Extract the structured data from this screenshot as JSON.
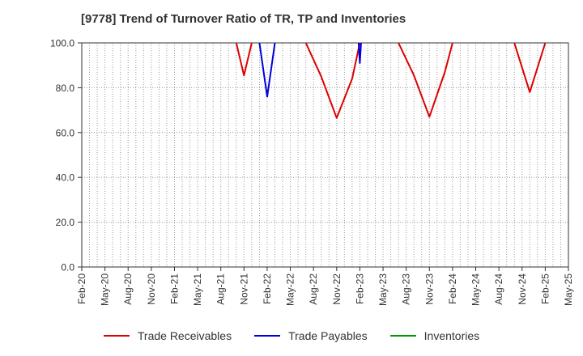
{
  "title": "[9778]  Trend of Turnover Ratio of TR, TP and Inventories",
  "chart_data": {
    "type": "line",
    "title": "[9778]  Trend of Turnover Ratio of TR, TP and Inventories",
    "xlabel": "",
    "ylabel": "",
    "ylim": [
      0,
      100
    ],
    "yticks": [
      "0.0",
      "20.0",
      "40.0",
      "60.0",
      "80.0",
      "100.0"
    ],
    "xticks": [
      "Feb-20",
      "May-20",
      "Aug-20",
      "Nov-20",
      "Feb-21",
      "May-21",
      "Aug-21",
      "Nov-21",
      "Feb-22",
      "May-22",
      "Aug-22",
      "Nov-22",
      "Feb-23",
      "May-23",
      "Aug-23",
      "Nov-23",
      "Feb-24",
      "May-24",
      "Aug-24",
      "Nov-24",
      "Feb-25",
      "May-25"
    ],
    "grid": true,
    "legend_position": "bottom",
    "series": [
      {
        "name": "Trade Receivables",
        "color": "#dd0000",
        "segments": [
          [
            [
              "Oct-21",
              100
            ],
            [
              "Nov-21",
              85.5
            ],
            [
              "Dec-21",
              100
            ]
          ],
          [
            [
              "Jul-22",
              100
            ],
            [
              "Sep-22",
              85
            ],
            [
              "Nov-22",
              66.5
            ],
            [
              "Jan-23",
              84
            ],
            [
              "Feb-23",
              100
            ]
          ],
          [
            [
              "Jul-23",
              100
            ],
            [
              "Sep-23",
              85.5
            ],
            [
              "Nov-23",
              67
            ],
            [
              "Jan-24",
              87
            ],
            [
              "Feb-24",
              100
            ]
          ],
          [
            [
              "Oct-24",
              100
            ],
            [
              "Dec-24",
              78
            ],
            [
              "Feb-25",
              100
            ]
          ]
        ]
      },
      {
        "name": "Trade Payables",
        "color": "#0000dd",
        "segments": [
          [
            [
              "Jan-22",
              100
            ],
            [
              "Feb-22",
              76
            ],
            [
              "Mar-22",
              100
            ]
          ],
          [
            [
              "Feb-23",
              100
            ],
            [
              "Feb-23",
              91
            ],
            [
              "Feb-23",
              100
            ]
          ]
        ]
      },
      {
        "name": "Inventories",
        "color": "#009900",
        "segments": []
      }
    ]
  }
}
